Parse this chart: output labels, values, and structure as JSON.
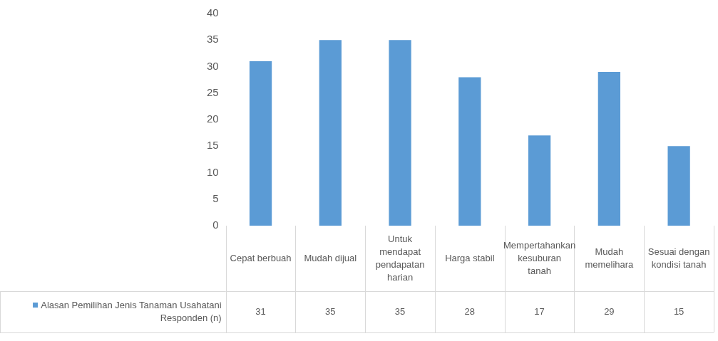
{
  "chart_data": {
    "type": "bar",
    "categories": [
      "Cepat berbuah",
      "Mudah dijual",
      "Untuk mendapat pendapatan harian",
      "Harga stabil",
      "Mempertahankan kesuburan tanah",
      "Mudah memelihara",
      "Sesuai dengan kondisi tanah"
    ],
    "series": [
      {
        "name": "Alasan Pemilihan Jenis Tanaman Usahatani Responden (n)",
        "color": "#5b9bd5",
        "values": [
          31,
          35,
          35,
          28,
          17,
          29,
          15
        ]
      }
    ],
    "ylim": [
      0,
      40
    ],
    "yticks": [
      0,
      5,
      10,
      15,
      20,
      25,
      30,
      35,
      40
    ],
    "grid": false,
    "legend": "bottom",
    "data_labels": true
  }
}
